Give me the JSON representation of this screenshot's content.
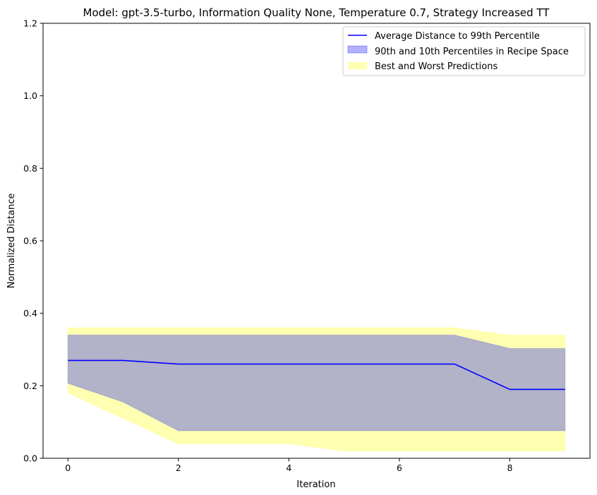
{
  "chart_data": {
    "type": "line",
    "title": "Model: gpt-3.5-turbo, Information Quality None, Temperature 0.7, Strategy Increased TT",
    "xlabel": "Iteration",
    "ylabel": "Normalized Distance",
    "xlim": [
      -0.45,
      9.45
    ],
    "ylim": [
      0,
      1.2
    ],
    "xticks": [
      0,
      2,
      4,
      6,
      8
    ],
    "yticks": [
      0.0,
      0.2,
      0.4,
      0.6,
      0.8,
      1.0,
      1.2
    ],
    "ytick_labels": [
      "0.0",
      "0.2",
      "0.4",
      "0.6",
      "0.8",
      "1.0",
      "1.2"
    ],
    "grid": false,
    "legend_position": "top-right",
    "x": [
      0,
      1,
      2,
      3,
      4,
      5,
      6,
      7,
      8,
      9
    ],
    "series": [
      {
        "name": "Average Distance to 99th Percentile",
        "kind": "line",
        "color": "#0000ff",
        "values": [
          0.27,
          0.27,
          0.26,
          0.26,
          0.26,
          0.26,
          0.26,
          0.26,
          0.19,
          0.19
        ]
      },
      {
        "name": "90th and 10th Percentiles in Recipe Space",
        "kind": "band",
        "color": "#0000ff",
        "opacity": 0.3,
        "upper": [
          0.34,
          0.34,
          0.34,
          0.34,
          0.34,
          0.34,
          0.34,
          0.34,
          0.303,
          0.303
        ],
        "lower": [
          0.207,
          0.155,
          0.076,
          0.076,
          0.076,
          0.076,
          0.076,
          0.076,
          0.076,
          0.076
        ]
      },
      {
        "name": "Best and Worst Predictions",
        "kind": "band",
        "color": "#ffff00",
        "opacity": 0.3,
        "upper": [
          0.36,
          0.36,
          0.36,
          0.36,
          0.36,
          0.36,
          0.36,
          0.36,
          0.34,
          0.34
        ],
        "lower": [
          0.18,
          0.11,
          0.04,
          0.04,
          0.04,
          0.02,
          0.02,
          0.02,
          0.02,
          0.02
        ]
      }
    ]
  }
}
